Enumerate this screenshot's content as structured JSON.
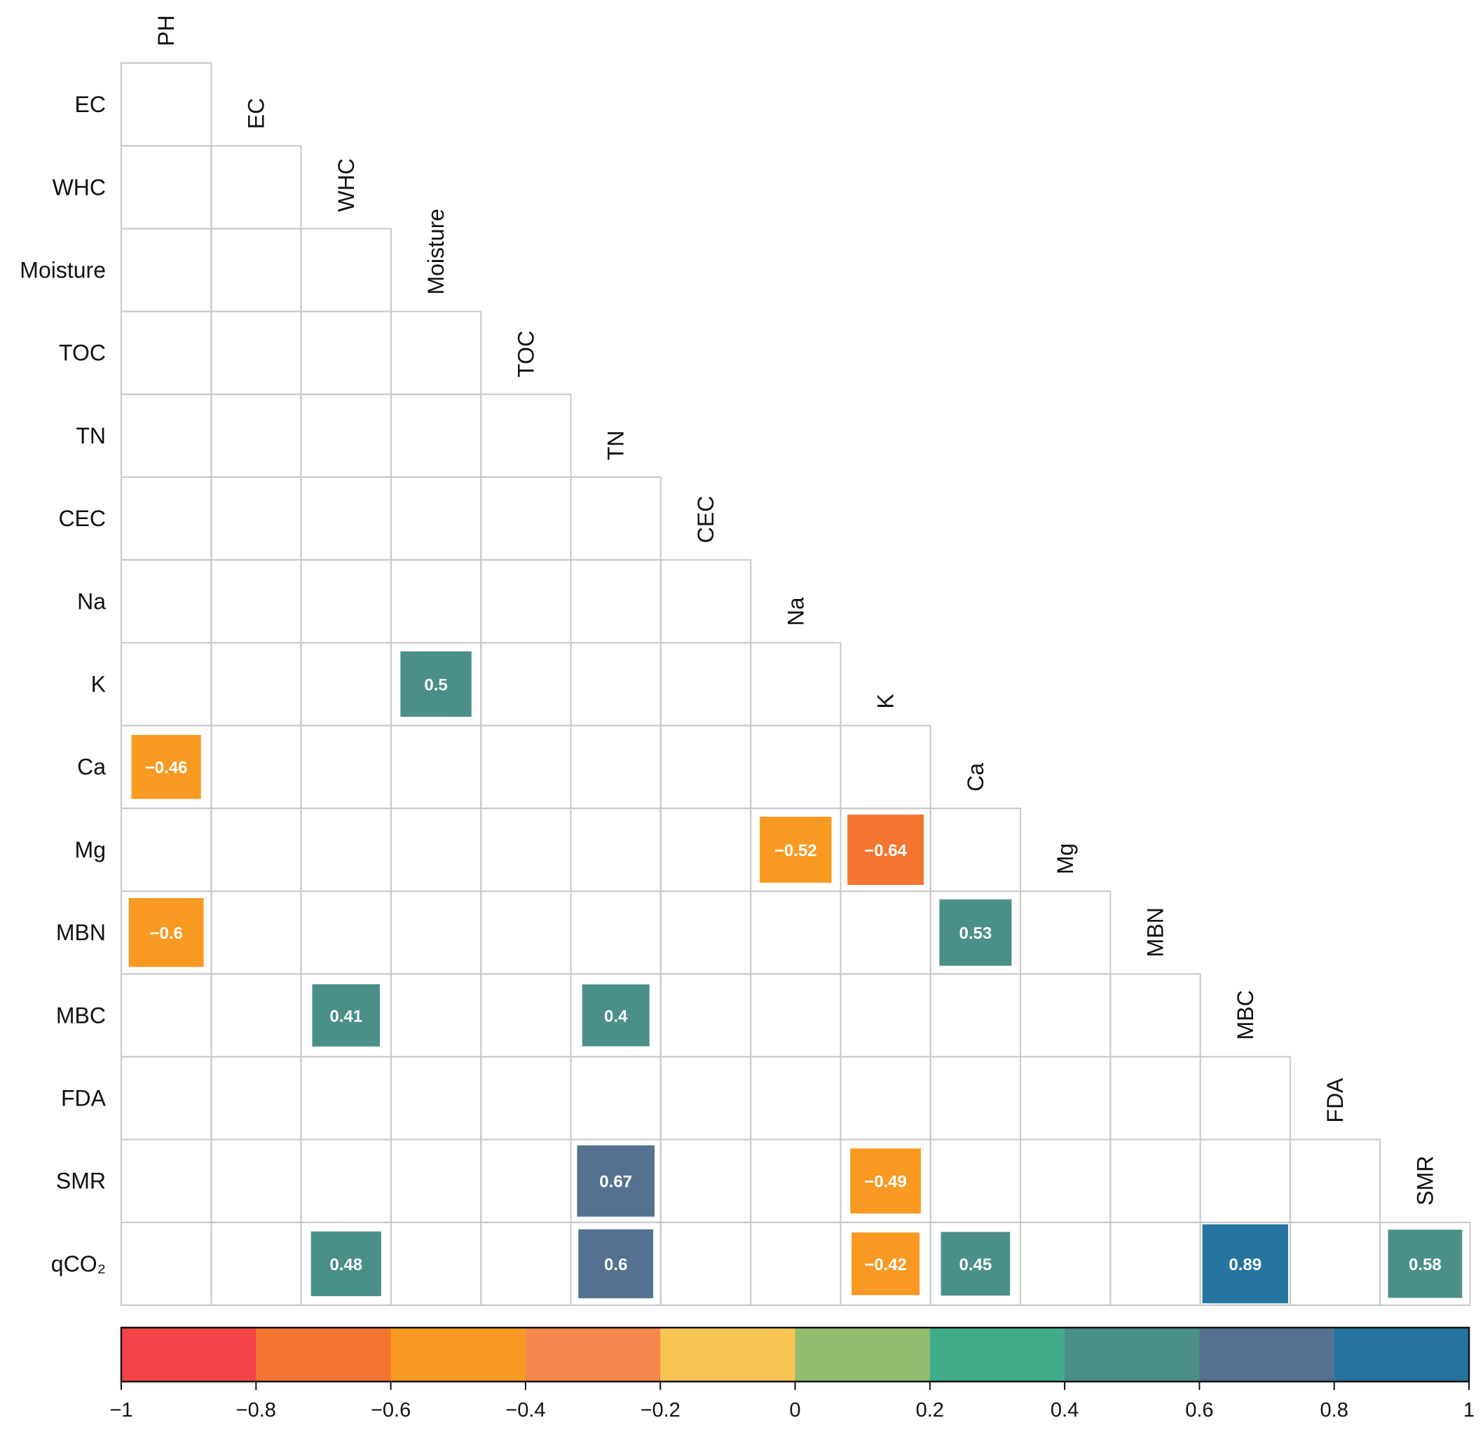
{
  "chart_data": {
    "type": "heatmap",
    "subtype": "lower-triangle correlation matrix",
    "variables": [
      "PH",
      "EC",
      "WHC",
      "Moisture",
      "TOC",
      "TN",
      "CEC",
      "Na",
      "K",
      "Ca",
      "Mg",
      "MBN",
      "MBC",
      "FDA",
      "SMR",
      "qCO2"
    ],
    "row_labels": [
      "EC",
      "WHC",
      "Moisture",
      "TOC",
      "TN",
      "CEC",
      "Na",
      "K",
      "Ca",
      "Mg",
      "MBN",
      "MBC",
      "FDA",
      "SMR",
      "qCO₂"
    ],
    "column_labels": [
      "PH",
      "EC",
      "WHC",
      "Moisture",
      "TOC",
      "TN",
      "CEC",
      "Na",
      "K",
      "Ca",
      "Mg",
      "MBN",
      "MBC",
      "FDA",
      "SMR"
    ],
    "significant_correlations": [
      {
        "row": "K",
        "col": "Moisture",
        "value": 0.5,
        "label": "0.5"
      },
      {
        "row": "Ca",
        "col": "PH",
        "value": -0.46,
        "label": "−0.46"
      },
      {
        "row": "Mg",
        "col": "Na",
        "value": -0.52,
        "label": "−0.52"
      },
      {
        "row": "Mg",
        "col": "K",
        "value": -0.64,
        "label": "−0.64"
      },
      {
        "row": "MBN",
        "col": "PH",
        "value": -0.6,
        "label": "−0.6"
      },
      {
        "row": "MBN",
        "col": "Ca",
        "value": 0.53,
        "label": "0.53"
      },
      {
        "row": "MBC",
        "col": "WHC",
        "value": 0.41,
        "label": "0.41"
      },
      {
        "row": "MBC",
        "col": "TN",
        "value": 0.4,
        "label": "0.4"
      },
      {
        "row": "SMR",
        "col": "TN",
        "value": 0.67,
        "label": "0.67"
      },
      {
        "row": "SMR",
        "col": "K",
        "value": -0.49,
        "label": "−0.49"
      },
      {
        "row": "qCO2",
        "col": "WHC",
        "value": 0.48,
        "label": "0.48"
      },
      {
        "row": "qCO2",
        "col": "TN",
        "value": 0.6,
        "label": "0.6"
      },
      {
        "row": "qCO2",
        "col": "K",
        "value": -0.42,
        "label": "−0.42"
      },
      {
        "row": "qCO2",
        "col": "Ca",
        "value": 0.45,
        "label": "0.45"
      },
      {
        "row": "qCO2",
        "col": "MBC",
        "value": 0.89,
        "label": "0.89"
      },
      {
        "row": "qCO2",
        "col": "SMR",
        "value": 0.58,
        "label": "0.58"
      }
    ],
    "colorbar": {
      "range": [
        -1,
        1
      ],
      "bins": [
        {
          "from": -1.0,
          "to": -0.8,
          "color": "#f54448"
        },
        {
          "from": -0.8,
          "to": -0.6,
          "color": "#f3752f"
        },
        {
          "from": -0.6,
          "to": -0.4,
          "color": "#f89a22"
        },
        {
          "from": -0.4,
          "to": -0.2,
          "color": "#f7874c"
        },
        {
          "from": -0.2,
          "to": 0.0,
          "color": "#f8c552"
        },
        {
          "from": 0.0,
          "to": 0.2,
          "color": "#91bd6e"
        },
        {
          "from": 0.2,
          "to": 0.4,
          "color": "#41ac8a"
        },
        {
          "from": 0.4,
          "to": 0.6,
          "color": "#4a8f88"
        },
        {
          "from": 0.6,
          "to": 0.8,
          "color": "#54728f"
        },
        {
          "from": 0.8,
          "to": 1.0,
          "color": "#2575a0"
        }
      ],
      "tick_values": [
        -1,
        -0.8,
        -0.6,
        -0.4,
        -0.2,
        0,
        0.2,
        0.4,
        0.6,
        0.8,
        1
      ],
      "tick_labels": [
        "−1",
        "−0.8",
        "−0.6",
        "−0.4",
        "−0.2",
        "0",
        "0.2",
        "0.4",
        "0.6",
        "0.8",
        "1"
      ]
    },
    "grid_color": "#c8c8c8"
  }
}
